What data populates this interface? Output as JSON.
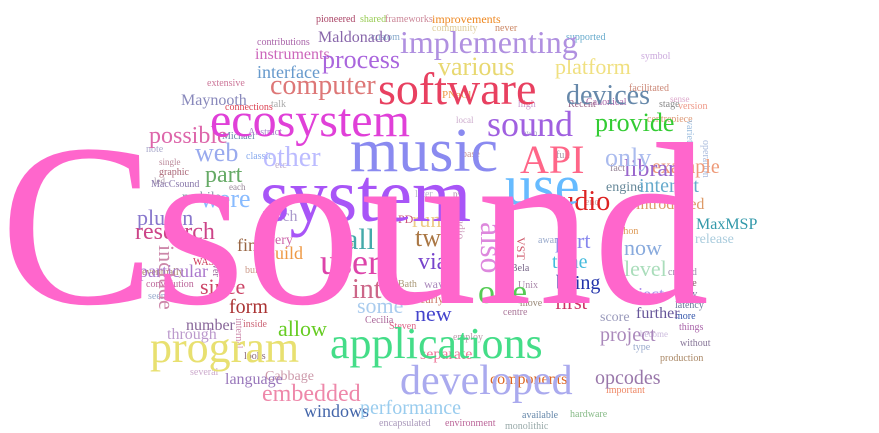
{
  "words": [
    {
      "text": "Csound",
      "color": "#ff66cc"
    },
    {
      "text": "system",
      "color": "#a855f7"
    },
    {
      "text": "music",
      "color": "#8a8af0"
    },
    {
      "text": "ecosystem",
      "color": "#e040d8"
    },
    {
      "text": "software",
      "color": "#e84060"
    },
    {
      "text": "applications",
      "color": "#44dd88"
    },
    {
      "text": "use",
      "color": "#66bbff"
    },
    {
      "text": "developed",
      "color": "#aaaaee"
    },
    {
      "text": "program",
      "color": "#e8e070"
    },
    {
      "text": "sound",
      "color": "#a060e0"
    },
    {
      "text": "API",
      "color": "#ff6688"
    },
    {
      "text": "implementing",
      "color": "#b090e0"
    },
    {
      "text": "computer",
      "color": "#dd7777"
    },
    {
      "text": "process",
      "color": "#aa66dd"
    },
    {
      "text": "various",
      "color": "#e8d870"
    },
    {
      "text": "devices",
      "color": "#6688aa"
    },
    {
      "text": "provide",
      "color": "#33cc33"
    },
    {
      "text": "other",
      "color": "#bbbbff"
    },
    {
      "text": "web",
      "color": "#99aaee"
    },
    {
      "text": "possible",
      "color": "#dd66aa"
    },
    {
      "text": "part",
      "color": "#66aa66"
    },
    {
      "text": "were",
      "color": "#88bbff"
    },
    {
      "text": "user",
      "color": "#dd44aa"
    },
    {
      "text": "all",
      "color": "#44aaaa"
    },
    {
      "text": "also",
      "color": "#dd88dd"
    },
    {
      "text": "one",
      "color": "#55cc55"
    },
    {
      "text": "into",
      "color": "#cc6688"
    },
    {
      "text": "audio",
      "color": "#dd2222"
    },
    {
      "text": "research",
      "color": "#cc4488"
    },
    {
      "text": "embedded",
      "color": "#ee88aa"
    },
    {
      "text": "new",
      "color": "#4444cc"
    },
    {
      "text": "some",
      "color": "#aaccee"
    },
    {
      "text": "library",
      "color": "#9966cc"
    },
    {
      "text": "interact",
      "color": "#66aacc"
    },
    {
      "text": "example",
      "color": "#ee9977"
    },
    {
      "text": "only",
      "color": "#aabbee"
    },
    {
      "text": "platform",
      "color": "#f0e080"
    },
    {
      "text": "interface",
      "color": "#6699cc"
    },
    {
      "text": "instruments",
      "color": "#cc66bb"
    },
    {
      "text": "Maldonado",
      "color": "#8866aa"
    },
    {
      "text": "Maynooth",
      "color": "#8888bb"
    },
    {
      "text": "since",
      "color": "#cc4466"
    },
    {
      "text": "form",
      "color": "#aa3333"
    },
    {
      "text": "allow",
      "color": "#66cc22"
    },
    {
      "text": "two",
      "color": "#aa7744"
    },
    {
      "text": "via",
      "color": "#7744cc"
    },
    {
      "text": "level",
      "color": "#aaddbb"
    },
    {
      "text": "port",
      "color": "#8888ee"
    },
    {
      "text": "time",
      "color": "#44bbdd"
    },
    {
      "text": "being",
      "color": "#2233aa"
    },
    {
      "text": "first",
      "color": "#cc3366"
    },
    {
      "text": "now",
      "color": "#88aadd"
    },
    {
      "text": "object",
      "color": "#aa88ee"
    },
    {
      "text": "project",
      "color": "#aa88bb"
    },
    {
      "text": "plugin",
      "color": "#8877cc"
    },
    {
      "text": "build",
      "color": "#ee9944"
    },
    {
      "text": "run",
      "color": "#eecc88"
    },
    {
      "text": "MaxMSP",
      "color": "#3399aa"
    },
    {
      "text": "opcodes",
      "color": "#9977aa"
    },
    {
      "text": "performance",
      "color": "#99ccee"
    },
    {
      "text": "components",
      "color": "#dd6622"
    },
    {
      "text": "windows",
      "color": "#4466aa"
    },
    {
      "text": "language",
      "color": "#9977bb"
    },
    {
      "text": "score",
      "color": "#9999bb"
    },
    {
      "text": "further",
      "color": "#665599"
    },
    {
      "text": "Cabbage",
      "color": "#cc99aa"
    },
    {
      "text": "separate",
      "color": "#ee7799"
    },
    {
      "text": "include",
      "color": "#cc88aa"
    },
    {
      "text": "particular",
      "color": "#aa77cc"
    },
    {
      "text": "number",
      "color": "#886699"
    },
    {
      "text": "through",
      "color": "#bb99cc"
    },
    {
      "text": "introduced",
      "color": "#dd9966"
    },
    {
      "text": "engine",
      "color": "#668899"
    },
    {
      "text": "release",
      "color": "#aaccdd"
    },
    {
      "text": "final",
      "color": "#996644"
    },
    {
      "text": "very",
      "color": "#cc66aa"
    },
    {
      "text": "much",
      "color": "#aa99cc"
    },
    {
      "text": "mobile",
      "color": "#8899aa"
    },
    {
      "text": "improvements",
      "color": "#ee8822"
    },
    {
      "text": "pioneered",
      "color": "#aa4466"
    },
    {
      "text": "shared",
      "color": "#99cc55"
    },
    {
      "text": "frameworks",
      "color": "#cc8899"
    },
    {
      "text": "community",
      "color": "#ddcc99"
    },
    {
      "text": "never",
      "color": "#cc8866"
    },
    {
      "text": "contributions",
      "color": "#aa66aa"
    },
    {
      "text": "custom",
      "color": "#88aacc"
    },
    {
      "text": "supported",
      "color": "#66aacc"
    },
    {
      "text": "facilitated",
      "color": "#cc8877"
    },
    {
      "text": "stage",
      "color": "#888888"
    },
    {
      "text": "symbol",
      "color": "#ccaadd"
    },
    {
      "text": "extensive",
      "color": "#cc7799"
    },
    {
      "text": "connections",
      "color": "#dd4455"
    },
    {
      "text": "talk",
      "color": "#aaaaaa"
    },
    {
      "text": "Canonical",
      "color": "#aa66aa"
    },
    {
      "text": "PNaCl",
      "color": "#ee9944"
    },
    {
      "text": "Recent",
      "color": "#996688"
    },
    {
      "text": "high",
      "color": "#cc99cc"
    },
    {
      "text": "Michael",
      "color": "#6688aa"
    },
    {
      "text": "Abstract",
      "color": "#aa88cc"
    },
    {
      "text": "note",
      "color": "#aaaacc"
    },
    {
      "text": "classic",
      "color": "#88aaee"
    },
    {
      "text": "graphic",
      "color": "#aa6677"
    },
    {
      "text": "MacCsound",
      "color": "#8877aa"
    },
    {
      "text": "convolution",
      "color": "#bb6699"
    },
    {
      "text": "eventually",
      "color": "#aa8866"
    },
    {
      "text": "seen",
      "color": "#99aacc"
    },
    {
      "text": "WASM",
      "color": "#cc3355"
    },
    {
      "text": "lower",
      "color": "#996699"
    },
    {
      "text": "built",
      "color": "#cc9988"
    },
    {
      "text": "inside",
      "color": "#cc6677"
    },
    {
      "text": "Cecilia",
      "color": "#aa6699"
    },
    {
      "text": "Bath",
      "color": "#aa9977"
    },
    {
      "text": "Steven",
      "color": "#dd6688"
    },
    {
      "text": "employ",
      "color": "#bb99aa"
    },
    {
      "text": "Bela",
      "color": "#776688"
    },
    {
      "text": "Unix",
      "color": "#aa88aa"
    },
    {
      "text": "move",
      "color": "#998877"
    },
    {
      "text": "centre",
      "color": "#aa7799"
    },
    {
      "text": "aware",
      "color": "#99aacc"
    },
    {
      "text": "VST",
      "color": "#cc5566"
    },
    {
      "text": "studio",
      "color": "#cc99bb"
    },
    {
      "text": "Python",
      "color": "#dd9955"
    },
    {
      "text": "created",
      "color": "#9988aa"
    },
    {
      "text": "made",
      "color": "#885566"
    },
    {
      "text": "many",
      "color": "#776699"
    },
    {
      "text": "latency",
      "color": "#667799"
    },
    {
      "text": "more",
      "color": "#3355aa"
    },
    {
      "text": "things",
      "color": "#aa66aa"
    },
    {
      "text": "without",
      "color": "#887799"
    },
    {
      "text": "production",
      "color": "#aa8866"
    },
    {
      "text": "type",
      "color": "#99aacc"
    },
    {
      "text": "available",
      "color": "#6688aa"
    },
    {
      "text": "hardware",
      "color": "#88bb88"
    },
    {
      "text": "encapsulated",
      "color": "#aa99bb"
    },
    {
      "text": "environment",
      "color": "#bb6699"
    },
    {
      "text": "monolithic",
      "color": "#99aaaa"
    },
    {
      "text": "important",
      "color": "#ee8866"
    },
    {
      "text": "several",
      "color": "#ccaacc"
    },
    {
      "text": "looks",
      "color": "#886677"
    },
    {
      "text": "internal",
      "color": "#cc88aa"
    },
    {
      "text": "early",
      "color": "#cc7766"
    },
    {
      "text": "way",
      "color": "#aa88bb"
    },
    {
      "text": "base",
      "color": "#cc9999"
    },
    {
      "text": "full",
      "color": "#aa99aa"
    },
    {
      "text": "fact",
      "color": "#998899"
    },
    {
      "text": "end",
      "color": "#ccaaaa"
    },
    {
      "text": "etc",
      "color": "#bbaacc"
    },
    {
      "text": "centrepiece",
      "color": "#dd9977"
    },
    {
      "text": "version",
      "color": "#ee9988"
    },
    {
      "text": "operation",
      "color": "#aabbdd"
    },
    {
      "text": "variety",
      "color": "#99bbdd"
    },
    {
      "text": "app",
      "color": "#ccaa88"
    },
    {
      "text": "it",
      "color": "#aa8899"
    },
    {
      "text": "PD",
      "color": "#cc5577"
    },
    {
      "text": "led",
      "color": "#aa99aa"
    },
    {
      "text": "single",
      "color": "#bb8899"
    },
    {
      "text": "each",
      "color": "#998899"
    },
    {
      "text": "later",
      "color": "#bbbbcc"
    },
    {
      "text": "py",
      "color": "#aa88aa"
    },
    {
      "text": "local",
      "color": "#ccaacc"
    },
    {
      "text": "own",
      "color": "#aaaacc"
    },
    {
      "text": "become",
      "color": "#ccbbdd"
    },
    {
      "text": "sense",
      "color": "#ddaacc"
    }
  ]
}
